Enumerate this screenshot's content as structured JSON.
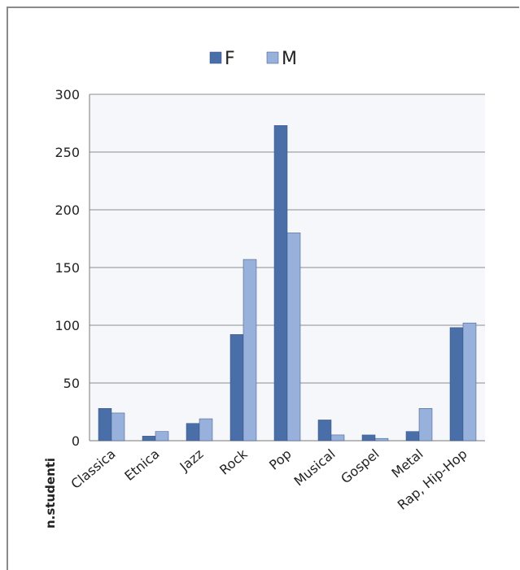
{
  "chart_data": {
    "type": "bar",
    "title": "",
    "xlabel": "",
    "ylabel": "n.studenti",
    "ylim": [
      0,
      300
    ],
    "yticks": [
      0,
      50,
      100,
      150,
      200,
      250,
      300
    ],
    "grid": true,
    "legend_position": "top",
    "categories": [
      "Classica",
      "Etnica",
      "Jazz",
      "Rock",
      "Pop",
      "Musical",
      "Gospel",
      "Metal",
      "Rap, Hip-Hop"
    ],
    "series": [
      {
        "name": "F",
        "color": "#4a6fa8",
        "values": [
          28,
          4,
          15,
          92,
          273,
          18,
          5,
          8,
          98
        ]
      },
      {
        "name": "M",
        "color": "#98b1dc",
        "values": [
          24,
          8,
          19,
          157,
          180,
          5,
          2,
          28,
          102
        ]
      }
    ]
  }
}
